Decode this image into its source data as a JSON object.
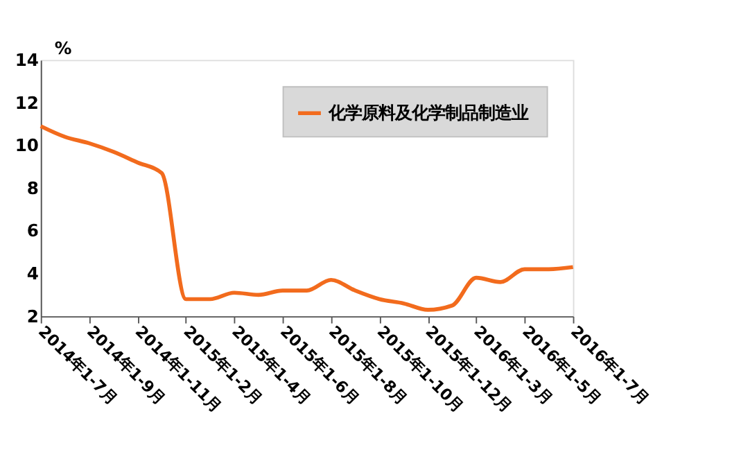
{
  "chart_data": {
    "type": "line",
    "ylabel": "%",
    "categories": [
      "2014年1-7月",
      null,
      "2014年1-9月",
      null,
      "2014年1-11月",
      null,
      "2015年1-2月",
      null,
      "2015年1-4月",
      null,
      "2015年1-6月",
      null,
      "2015年1-8月",
      null,
      "2015年1-10月",
      null,
      "2015年1-12月",
      null,
      "2016年1-3月",
      null,
      "2016年1-5月",
      null,
      "2016年1-7月"
    ],
    "series": [
      {
        "name": "化学原料及化学制品制造业",
        "color": "#f26b1d",
        "values": [
          10.9,
          10.4,
          10.1,
          9.7,
          9.2,
          8.7,
          2.8,
          2.8,
          3.1,
          3.0,
          3.2,
          3.2,
          3.7,
          3.2,
          2.8,
          2.6,
          2.3,
          2.5,
          3.8,
          3.6,
          4.2,
          4.2,
          4.3
        ]
      }
    ],
    "ylim": [
      2,
      14
    ],
    "yticks": [
      2,
      4,
      6,
      8,
      10,
      12,
      14
    ],
    "grid": false,
    "legend": "top right",
    "line_style": "solid"
  }
}
